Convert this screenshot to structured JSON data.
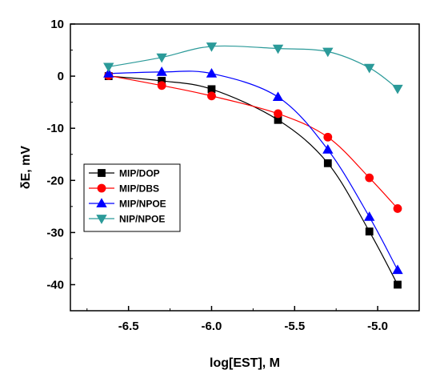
{
  "chart_data": {
    "type": "line",
    "title": "",
    "xlabel": "log[EST], M",
    "ylabel": "δE, mV",
    "xlim": [
      -6.85,
      -4.75
    ],
    "ylim": [
      -45,
      10
    ],
    "xticks": [
      -6.5,
      -6.0,
      -5.5,
      -5.0
    ],
    "xtick_labels": [
      "-6.5",
      "-6.0",
      "-5.5",
      "-5.0"
    ],
    "yticks": [
      10,
      0,
      -10,
      -20,
      -30,
      -40
    ],
    "ytick_labels": [
      "10",
      "0",
      "-10",
      "-20",
      "-30",
      "-40"
    ],
    "grid": false,
    "legend_position": "lower-left",
    "series": [
      {
        "name": "MIP/DOP",
        "color": "#000000",
        "marker": "square",
        "x": [
          -6.62,
          -6.3,
          -6.0,
          -5.6,
          -5.3,
          -5.05,
          -4.88
        ],
        "y": [
          0.0,
          -0.9,
          -2.5,
          -8.4,
          -16.7,
          -29.8,
          -40.0
        ]
      },
      {
        "name": "MIP/DBS",
        "color": "#ff0000",
        "marker": "circle",
        "x": [
          -6.62,
          -6.3,
          -6.0,
          -5.6,
          -5.3,
          -5.05,
          -4.88
        ],
        "y": [
          0.1,
          -1.8,
          -3.8,
          -7.2,
          -11.7,
          -19.5,
          -25.4
        ]
      },
      {
        "name": "MIP/NPOE",
        "color": "#0000ff",
        "marker": "triangle-up",
        "x": [
          -6.62,
          -6.3,
          -6.0,
          -5.6,
          -5.3,
          -5.05,
          -4.88
        ],
        "y": [
          0.5,
          0.8,
          0.5,
          -4.0,
          -14.1,
          -27.0,
          -37.2
        ]
      },
      {
        "name": "NIP/NPOE",
        "color": "#2b9a99",
        "marker": "triangle-down",
        "x": [
          -6.62,
          -6.3,
          -6.0,
          -5.6,
          -5.3,
          -5.05,
          -4.88
        ],
        "y": [
          1.8,
          3.6,
          5.7,
          5.3,
          4.7,
          1.6,
          -2.4
        ]
      }
    ]
  }
}
